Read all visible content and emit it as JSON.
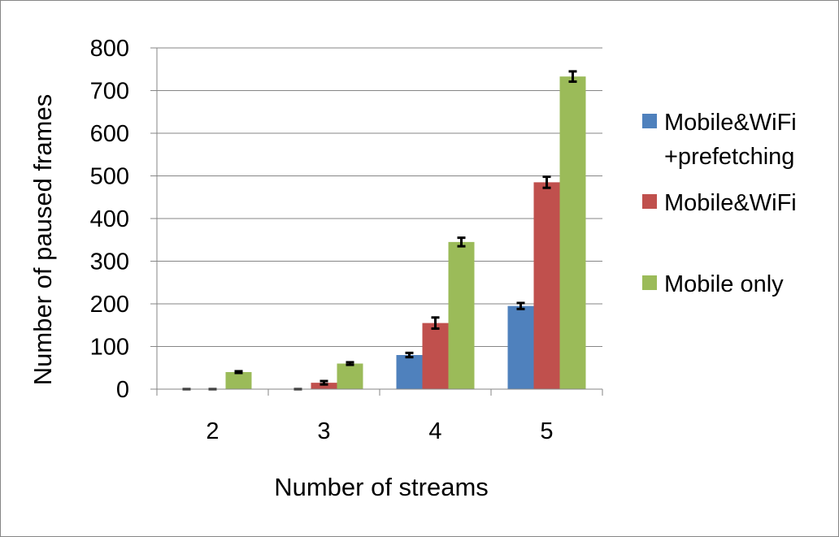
{
  "chart_data": {
    "type": "bar",
    "title": "",
    "xlabel": "Number of streams",
    "ylabel": "Number of paused frames",
    "categories": [
      "2",
      "3",
      "4",
      "5"
    ],
    "ylim": [
      0,
      800
    ],
    "yticks": [
      0,
      100,
      200,
      300,
      400,
      500,
      600,
      700,
      800
    ],
    "grid": true,
    "legend_position": "right",
    "series": [
      {
        "name": "Mobile&WiFi +prefetching",
        "legend_lines": [
          "Mobile&WiFi",
          "+prefetching"
        ],
        "color": "#4f81bd",
        "values": [
          0,
          0,
          80,
          195
        ],
        "error": [
          0,
          0,
          5,
          7
        ]
      },
      {
        "name": "Mobile&WiFi",
        "legend_lines": [
          "Mobile&WiFi"
        ],
        "color": "#c0504d",
        "values": [
          0,
          15,
          155,
          485
        ],
        "error": [
          0,
          4,
          13,
          13
        ]
      },
      {
        "name": "Mobile only",
        "legend_lines": [
          "Mobile only"
        ],
        "color": "#9bbb59",
        "values": [
          40,
          60,
          345,
          733
        ],
        "error": [
          2,
          3,
          10,
          12
        ]
      }
    ]
  }
}
